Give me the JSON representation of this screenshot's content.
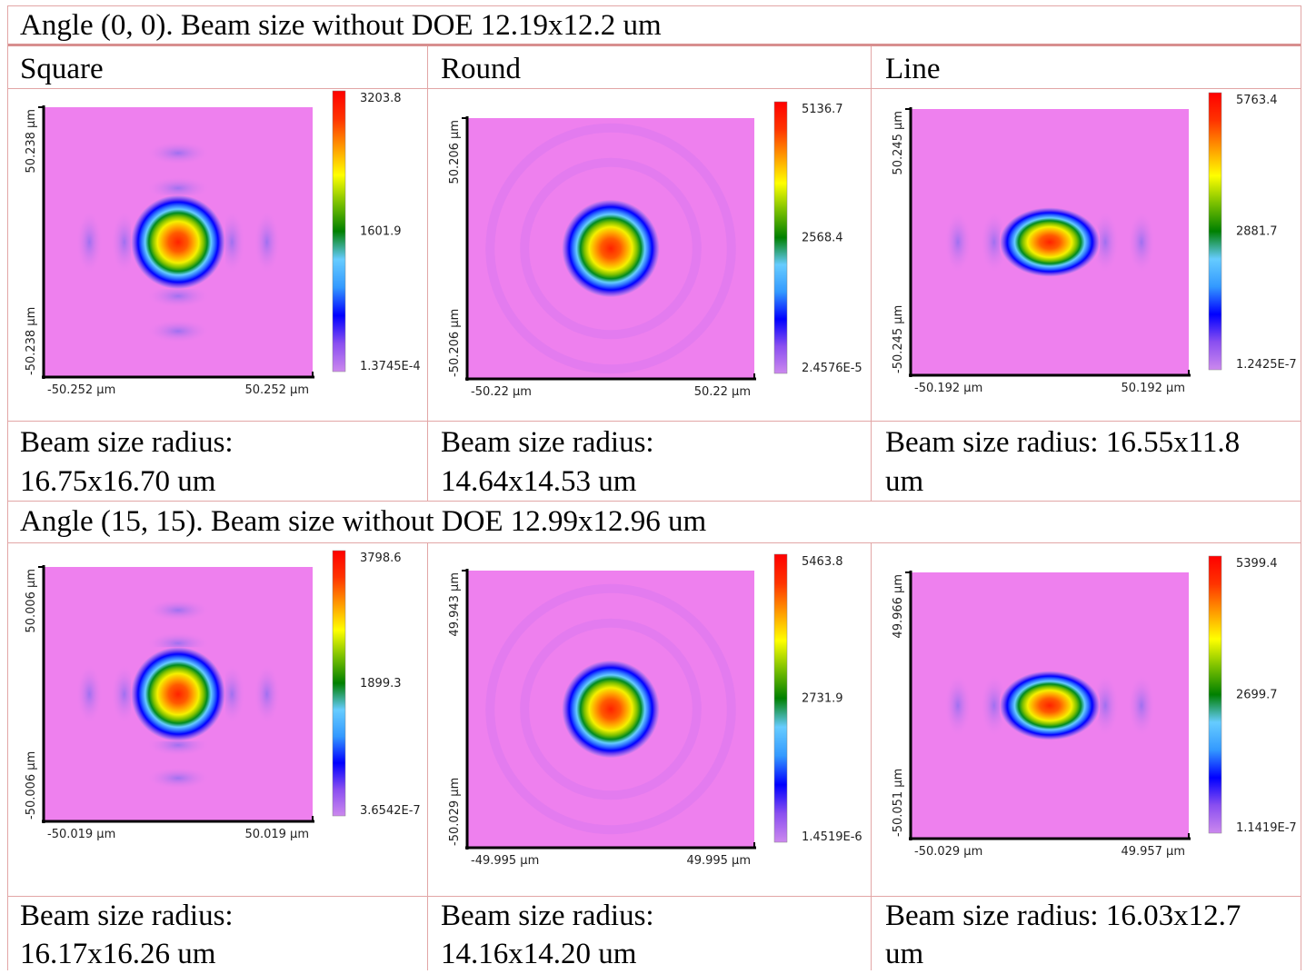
{
  "rows": [
    {
      "header": "Angle (0, 0). Beam size without DOE 12.19x12.2 um",
      "cells": [
        {
          "title": "Square",
          "plot": {
            "shape": "square",
            "y_top": "50.238 µm",
            "y_bottom": "-50.238 µm",
            "x_left": "-50.252 µm",
            "x_right": "50.252 µm",
            "scale_max": "3203.8",
            "scale_mid": "1601.9",
            "scale_min": "1.3745E-4"
          },
          "caption_1": "Beam size radius:",
          "caption_2": "16.75x16.70 um"
        },
        {
          "title": "Round",
          "plot": {
            "shape": "round",
            "y_top": "50.206 µm",
            "y_bottom": "-50.206 µm",
            "x_left": "-50.22 µm",
            "x_right": "50.22 µm",
            "scale_max": "5136.7",
            "scale_mid": "2568.4",
            "scale_min": "2.4576E-5"
          },
          "caption_1": "Beam size radius:",
          "caption_2": "14.64x14.53 um"
        },
        {
          "title": "Line",
          "plot": {
            "shape": "line",
            "y_top": "50.245 µm",
            "y_bottom": "-50.245 µm",
            "x_left": "-50.192 µm",
            "x_right": "50.192 µm",
            "scale_max": "5763.4",
            "scale_mid": "2881.7",
            "scale_min": "1.2425E-7"
          },
          "caption_1": "Beam size radius: 16.55x11.8",
          "caption_2": "um"
        }
      ]
    },
    {
      "header": "Angle (15, 15). Beam size without DOE 12.99x12.96 um",
      "cells": [
        {
          "title": "",
          "plot": {
            "shape": "square",
            "y_top": "50.006 µm",
            "y_bottom": "-50.006 µm",
            "x_left": "-50.019 µm",
            "x_right": "50.019 µm",
            "scale_max": "3798.6",
            "scale_mid": "1899.3",
            "scale_min": "3.6542E-7"
          },
          "caption_1": "Beam size radius:",
          "caption_2": "16.17x16.26 um"
        },
        {
          "title": "",
          "plot": {
            "shape": "round",
            "y_top": "49.943 µm",
            "y_bottom": "-50.029 µm",
            "x_left": "-49.995 µm",
            "x_right": "49.995 µm",
            "scale_max": "5463.8",
            "scale_mid": "2731.9",
            "scale_min": "1.4519E-6"
          },
          "caption_1": "Beam size radius:",
          "caption_2": "14.16x14.20 um"
        },
        {
          "title": "",
          "plot": {
            "shape": "line",
            "y_top": "49.966 µm",
            "y_bottom": "-50.051 µm",
            "x_left": "-50.029 µm",
            "x_right": "49.957 µm",
            "scale_max": "5399.4",
            "scale_mid": "2699.7",
            "scale_min": "1.1419E-7"
          },
          "caption_1": "Beam size radius: 16.03x12.7",
          "caption_2": "um"
        }
      ]
    }
  ],
  "colors": {
    "background": "#ee80ee",
    "border": "#e2a6a6",
    "colormap": [
      "#cc88ee",
      "#8a4ff0",
      "#0000ff",
      "#3399ff",
      "#66ccff",
      "#008000",
      "#7ac000",
      "#ffff00",
      "#ff9900",
      "#ff3300",
      "#ff0000"
    ]
  }
}
